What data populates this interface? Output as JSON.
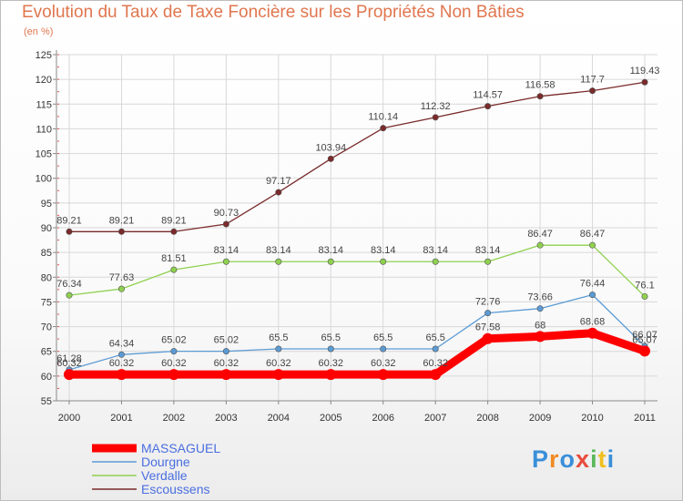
{
  "title": "Evolution du Taux de Taxe Foncière sur les Propriétés Non Bâties",
  "unit_label": "(en %)",
  "logo": {
    "text": "Proxiti",
    "letters": [
      "P",
      "r",
      "o",
      "x",
      "i",
      "t",
      "i"
    ],
    "colors": [
      "#3a8fd9",
      "#f08a24",
      "#3a8fd9",
      "#e84c3d",
      "#5cb85c",
      "#f0c020",
      "#3a8fd9"
    ]
  },
  "chart_data": {
    "type": "line",
    "x": [
      "2000",
      "2001",
      "2002",
      "2003",
      "2004",
      "2005",
      "2006",
      "2007",
      "2008",
      "2009",
      "2010",
      "2011"
    ],
    "ylim": [
      55,
      125
    ],
    "yticks": [
      55,
      60,
      65,
      70,
      75,
      80,
      85,
      90,
      95,
      100,
      105,
      110,
      115,
      120,
      125
    ],
    "grid": true,
    "legend_placement": "bottom-left",
    "series": [
      {
        "name": "MASSAGUEL",
        "color": "#ff0000",
        "values": [
          60.32,
          60.32,
          60.32,
          60.32,
          60.32,
          60.32,
          60.32,
          60.32,
          67.58,
          68,
          68.68,
          65.07
        ],
        "labels": [
          "60.32",
          "60.32",
          "60.32",
          "60.32",
          "60.32",
          "60.32",
          "60.32",
          "60.32",
          "67.58",
          "68",
          "68.68",
          "65.07"
        ]
      },
      {
        "name": "Dourgne",
        "color": "#5b9bd5",
        "values": [
          61.28,
          64.34,
          65.02,
          65.02,
          65.5,
          65.5,
          65.5,
          65.5,
          72.76,
          73.66,
          76.44,
          66.07
        ],
        "labels": [
          "61.28",
          "64.34",
          "65.02",
          "65.02",
          "65.5",
          "65.5",
          "65.5",
          "65.5",
          "72.76",
          "73.66",
          "76.44",
          "66.07"
        ]
      },
      {
        "name": "Verdalle",
        "color": "#8fd14f",
        "values": [
          76.34,
          77.63,
          81.51,
          83.14,
          83.14,
          83.14,
          83.14,
          83.14,
          83.14,
          86.47,
          86.47,
          76.1
        ],
        "labels": [
          "76.34",
          "77.63",
          "81.51",
          "83.14",
          "83.14",
          "83.14",
          "83.14",
          "83.14",
          "83.14",
          "86.47",
          "86.47",
          "76.1"
        ]
      },
      {
        "name": "Escoussens",
        "color": "#7a2a2a",
        "values": [
          89.21,
          89.21,
          89.21,
          90.73,
          97.17,
          103.94,
          110.14,
          112.32,
          114.57,
          116.58,
          117.7,
          119.43
        ],
        "labels": [
          "89.21",
          "89.21",
          "89.21",
          "90.73",
          "97.17",
          "103.94",
          "110.14",
          "112.32",
          "114.57",
          "116.58",
          "117.7",
          "119.43"
        ]
      }
    ]
  }
}
